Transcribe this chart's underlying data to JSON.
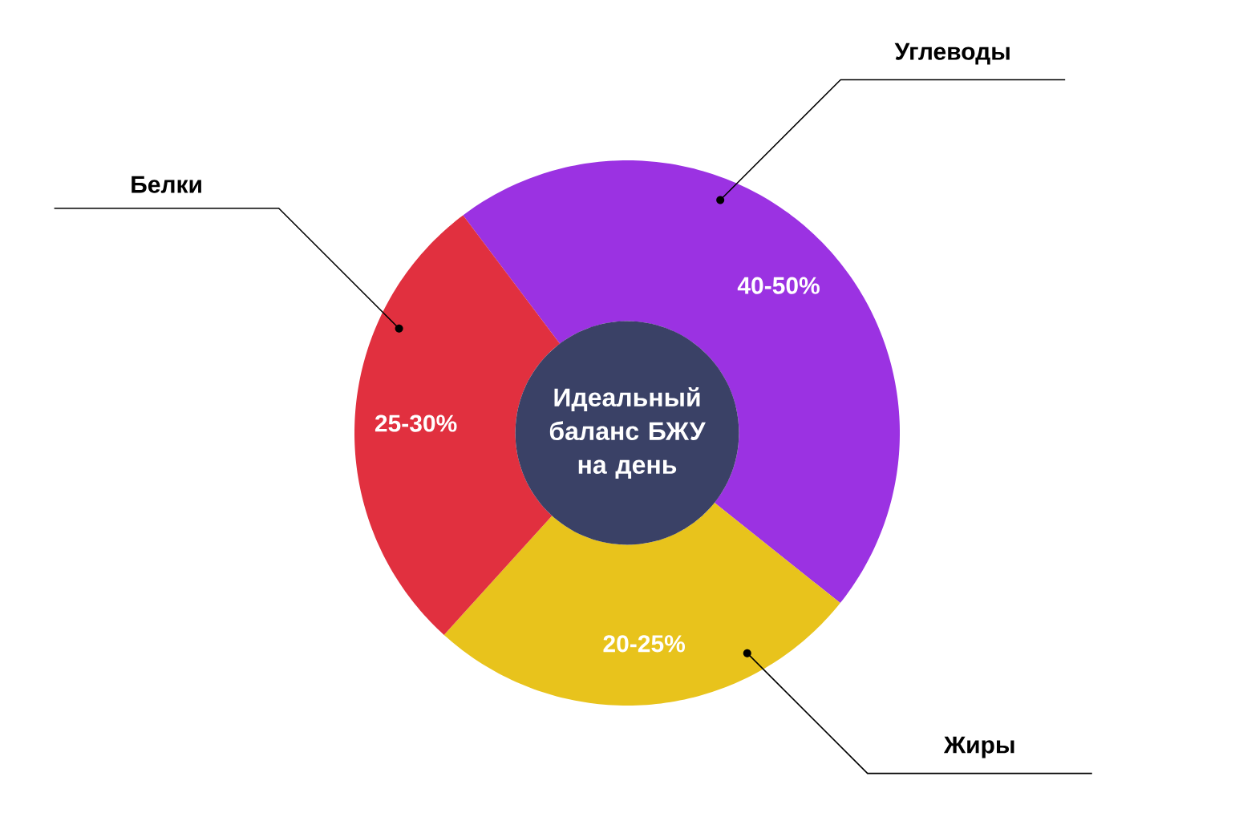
{
  "chart_data": {
    "type": "donut",
    "title": "Идеальный баланс БЖУ на день",
    "categories": [
      "Углеводы",
      "Жиры",
      "Белки"
    ],
    "values": [
      46,
      26,
      28
    ],
    "colors": [
      "#9b32e2",
      "#e8c31c",
      "#e1303f"
    ],
    "annotations": [
      "40-50%",
      "20-25%",
      "25-30%"
    ]
  }
}
